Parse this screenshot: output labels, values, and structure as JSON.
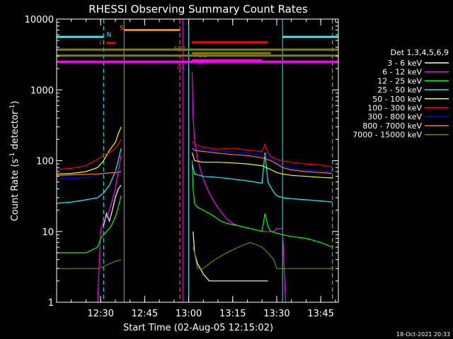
{
  "chart_data": {
    "type": "line",
    "title": "RHESSI Observing Summary Count Rates",
    "xlabel": "Start Time (02-Aug-05 12:15:02)",
    "ylabel": "Count Rate (s⁻¹ detector⁻¹)",
    "ylabel_parts": {
      "main": "Count Rate (s",
      "exp1": "-1",
      "mid": " detector",
      "exp2": "-1",
      "end": ")"
    },
    "yscale": "log",
    "xlim_min": [
      0,
      96
    ],
    "ylim": [
      1,
      10000
    ],
    "x_ticks": [
      {
        "t": 15,
        "label": "12:30"
      },
      {
        "t": 30,
        "label": "12:45"
      },
      {
        "t": 45,
        "label": "13:00"
      },
      {
        "t": 60,
        "label": "13:15"
      },
      {
        "t": 75,
        "label": "13:30"
      },
      {
        "t": 90,
        "label": "13:45"
      }
    ],
    "y_ticks": [
      {
        "v": 1,
        "label": "1"
      },
      {
        "v": 10,
        "label": "10"
      },
      {
        "v": 100,
        "label": "100"
      },
      {
        "v": 1000,
        "label": "1000"
      },
      {
        "v": 10000,
        "label": "10000"
      }
    ],
    "legend_title": "Det 1,3,4,5,6,9",
    "legend_position": "right",
    "timestamp": "18-Oct-2021 20:33",
    "series": [
      {
        "name": "3 - 6 keV",
        "color": "#ffffff",
        "x": [
          0,
          14,
          16,
          17,
          18,
          19,
          20,
          21,
          22,
          22.5,
          46,
          46.5,
          47,
          48,
          49,
          50,
          52,
          54,
          56,
          58,
          60,
          62,
          64,
          66,
          68,
          70,
          72,
          74
        ],
        "y": [
          null,
          null,
          12,
          18,
          14,
          20,
          30,
          40,
          45,
          null,
          null,
          10,
          5,
          3.5,
          3,
          2.5,
          2,
          2,
          2,
          2,
          2,
          2,
          2,
          2,
          2,
          2,
          2,
          null
        ]
      },
      {
        "name": "6 - 12 keV",
        "color": "#ff00ff",
        "x": [
          0,
          14,
          15,
          16,
          17,
          18,
          19,
          20,
          21,
          22,
          22.5,
          46,
          46.2,
          46.5,
          47,
          48,
          49,
          50,
          52,
          54,
          56,
          58,
          60,
          62,
          64,
          66,
          68,
          70,
          72,
          74,
          75,
          77,
          78
        ],
        "y": [
          null,
          1,
          10,
          14,
          16,
          20,
          28,
          40,
          70,
          120,
          null,
          null,
          1800,
          400,
          200,
          110,
          75,
          55,
          35,
          25,
          19,
          15,
          13,
          12,
          11.5,
          11,
          10.5,
          10,
          10,
          10,
          11,
          11,
          1
        ]
      },
      {
        "name": "12 - 25 keV",
        "color": "#00ff00",
        "x": [
          0,
          5,
          10,
          14,
          15,
          16,
          17,
          18,
          19,
          20,
          21,
          22,
          22.5,
          46,
          46.2,
          46.5,
          47,
          48,
          50,
          52,
          54,
          56,
          58,
          60,
          62,
          64,
          66,
          68,
          70,
          71,
          72,
          73,
          75,
          77,
          80,
          85,
          90,
          94
        ],
        "y": [
          5,
          5,
          5,
          6,
          8,
          9,
          10,
          11,
          13,
          16,
          22,
          32,
          null,
          null,
          100,
          40,
          25,
          22,
          20,
          18,
          16,
          14,
          13,
          12.5,
          12,
          11.5,
          11,
          10.5,
          10,
          18,
          12,
          10,
          9.5,
          9,
          8.5,
          8,
          7,
          6
        ]
      },
      {
        "name": "25 - 50 keV",
        "color": "#00ffff",
        "x": [
          0,
          5,
          10,
          14,
          16,
          18,
          20,
          21,
          22,
          22.5,
          46,
          46.2,
          47,
          50,
          55,
          60,
          65,
          70,
          71,
          72,
          73,
          74,
          75,
          77,
          80,
          85,
          90,
          94
        ],
        "y": [
          25,
          26,
          28,
          30,
          35,
          45,
          70,
          100,
          150,
          null,
          null,
          90,
          65,
          60,
          58,
          55,
          52,
          48,
          130,
          50,
          42,
          36,
          32,
          30,
          29,
          28,
          27,
          26
        ]
      },
      {
        "name": "50 - 100 keV",
        "color": "#ffff00",
        "x": [
          0,
          5,
          10,
          14,
          16,
          18,
          20,
          21,
          22,
          22.5,
          46,
          46.2,
          47,
          50,
          55,
          60,
          65,
          70,
          73,
          75,
          77,
          80,
          85,
          90,
          94
        ],
        "y": [
          65,
          66,
          70,
          80,
          100,
          140,
          180,
          240,
          300,
          null,
          null,
          130,
          100,
          95,
          95,
          93,
          90,
          85,
          75,
          68,
          65,
          62,
          60,
          58,
          57
        ]
      },
      {
        "name": "100 - 300 keV",
        "color": "#ff0000",
        "x": [
          0,
          5,
          10,
          14,
          16,
          18,
          20,
          21,
          22,
          22.5,
          46,
          46.2,
          47,
          50,
          55,
          60,
          63,
          66,
          70,
          71,
          72,
          73,
          75,
          77,
          80,
          85,
          90,
          94
        ],
        "y": [
          75,
          78,
          85,
          105,
          120,
          130,
          150,
          170,
          200,
          null,
          null,
          190,
          170,
          155,
          145,
          150,
          145,
          140,
          135,
          170,
          130,
          115,
          105,
          100,
          95,
          90,
          87,
          82
        ]
      },
      {
        "name": "300 - 800 keV",
        "color": "#0000ff",
        "x": [
          0,
          5,
          10,
          14,
          16,
          18,
          20,
          22,
          22.5,
          46,
          46.2,
          47,
          50,
          55,
          60,
          65,
          70,
          73,
          75,
          77,
          80,
          85,
          90,
          94
        ],
        "y": [
          55,
          56,
          58,
          63,
          66,
          68,
          70,
          72,
          null,
          null,
          170,
          155,
          145,
          138,
          133,
          128,
          120,
          110,
          95,
          85,
          78,
          75,
          72,
          70
        ]
      },
      {
        "name": "800 - 7000 keV",
        "color": "#ff8000",
        "x": [
          0,
          5,
          10,
          14,
          16,
          18,
          20,
          22,
          22.5,
          46,
          46.2,
          47,
          50,
          55,
          60,
          65,
          70,
          73,
          75,
          77,
          80,
          85,
          90,
          94
        ],
        "y": [
          62,
          63,
          64,
          65,
          66,
          67,
          68,
          70,
          null,
          null,
          150,
          140,
          135,
          128,
          122,
          118,
          110,
          100,
          90,
          80,
          74,
          70,
          68,
          66
        ]
      },
      {
        "name": "7000 - 15000 keV",
        "color": "#808000",
        "x": [
          0,
          5,
          10,
          14,
          16,
          18,
          20,
          22,
          22.5,
          46,
          46.5,
          47,
          48,
          50,
          52,
          54,
          56,
          58,
          60,
          62,
          64,
          66,
          68,
          70,
          72,
          74,
          75,
          77,
          80,
          85,
          90,
          94
        ],
        "y": [
          3,
          3,
          3,
          3,
          3.2,
          3.5,
          3.8,
          4,
          null,
          null,
          6,
          5,
          3,
          3,
          3.5,
          4,
          4.5,
          5,
          5.5,
          6,
          6.5,
          7,
          6.5,
          6,
          5,
          4,
          3,
          3,
          3,
          3,
          3,
          3
        ]
      }
    ],
    "vlines": [
      {
        "t": 0,
        "color": "#00ffff",
        "style": "solid"
      },
      {
        "t": 16,
        "color": "#00ffff",
        "style": "dash"
      },
      {
        "t": 23,
        "color": "#ff8000",
        "style": "solid"
      },
      {
        "t": 42,
        "color": "#ff8000",
        "style": "dash"
      },
      {
        "t": 43,
        "color": "#ff00ff",
        "style": "solid"
      },
      {
        "t": 45,
        "color": "#00ffff",
        "style": "solid"
      },
      {
        "t": 77,
        "color": "#00ffff",
        "style": "solid"
      },
      {
        "t": 94,
        "color": "#00ffff",
        "style": "dash"
      }
    ],
    "flag_bars": [
      {
        "label": "N",
        "color": "#00ffff",
        "t1": -1,
        "t2": 16,
        "v": 5600,
        "label_t": 17,
        "label_v": 6000
      },
      {
        "label": "",
        "color": "#00ffff",
        "t1": 77,
        "t2": 96,
        "v": 5600
      },
      {
        "label": "S",
        "color": "#ff8000",
        "t1": 23,
        "t2": 42,
        "v": 7000,
        "label_t": 21.5,
        "label_v": 7500
      },
      {
        "label": "F",
        "color": "#ff0000",
        "t1": 17,
        "t2": 20,
        "v": 4600,
        "label_t": 14.5,
        "label_v": 4600
      },
      {
        "label": "",
        "color": "#ff0000",
        "t1": 46,
        "t2": 72,
        "v": 4700
      },
      {
        "label": "FD1",
        "color": "#808000",
        "t1": -1,
        "t2": 96,
        "v": 3700,
        "label_t": 40,
        "label_v": 3800
      },
      {
        "label": "FD2",
        "color": "#808000",
        "t1": 46,
        "t2": 73,
        "v": 3300,
        "label_t": 47,
        "label_v": 3100
      },
      {
        "label": "",
        "color": "#808000",
        "t1": -1,
        "t2": 96,
        "v": 3050
      },
      {
        "label": "AD",
        "color": "#ff00ff",
        "t1": 46,
        "t2": 70,
        "v": 2600,
        "label_t": 47,
        "label_v": 2500
      },
      {
        "label": "A1",
        "color": "#ff00ff",
        "t1": -1,
        "t2": 96,
        "v": 2500,
        "label_t": 41,
        "label_v": 2100
      }
    ]
  }
}
